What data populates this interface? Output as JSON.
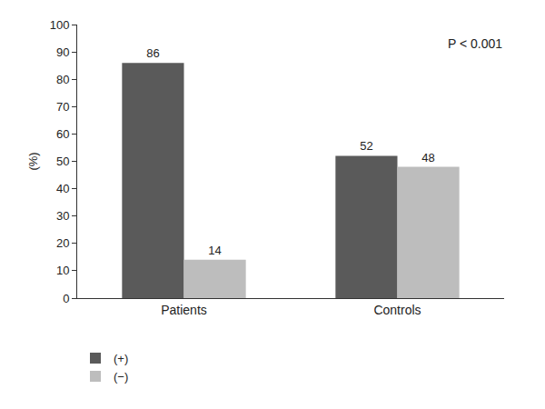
{
  "chart_data": {
    "type": "bar",
    "y_label": "(%)",
    "categories": [
      "Patients",
      "Controls"
    ],
    "series": [
      {
        "name": "(+)",
        "color": "#5a5a5a",
        "values": [
          86,
          52
        ]
      },
      {
        "name": "(−)",
        "color": "#bdbdbd",
        "values": [
          14,
          48
        ]
      }
    ],
    "annotations": [
      "P < 0.001"
    ],
    "ylim": [
      0,
      100
    ],
    "yticks": [
      0,
      10,
      20,
      30,
      40,
      50,
      60,
      70,
      80,
      90,
      100
    ],
    "grid": false,
    "legend": "bottom-left",
    "data_labels": true
  }
}
